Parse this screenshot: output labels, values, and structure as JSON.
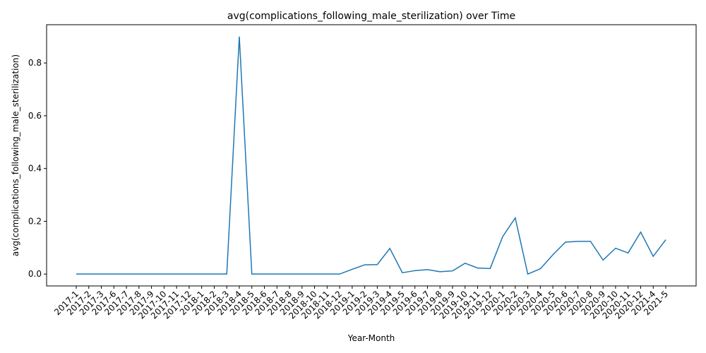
{
  "chart_data": {
    "type": "line",
    "title": "avg(complications_following_male_sterilization) over Time",
    "xlabel": "Year-Month",
    "ylabel": "avg(complications_following_male_sterilization)",
    "ylim": [
      -0.045,
      0.945
    ],
    "yticks": [
      0.0,
      0.2,
      0.4,
      0.6,
      0.8
    ],
    "ytick_labels": [
      "0.0",
      "0.2",
      "0.4",
      "0.6",
      "0.8"
    ],
    "grid": false,
    "color": "#1f77b4",
    "categories": [
      "2017-1",
      "2017-2",
      "2017-3",
      "2017-6",
      "2017-7",
      "2017-8",
      "2017-9",
      "2017-10",
      "2017-11",
      "2017-12",
      "2018-1",
      "2018-2",
      "2018-3",
      "2018-4",
      "2018-5",
      "2018-6",
      "2018-7",
      "2018-8",
      "2018-9",
      "2018-10",
      "2018-11",
      "2018-12",
      "2019-1",
      "2019-2",
      "2019-3",
      "2019-4",
      "2019-5",
      "2019-6",
      "2019-7",
      "2019-8",
      "2019-9",
      "2019-10",
      "2019-11",
      "2019-12",
      "2020-1",
      "2020-2",
      "2020-3",
      "2020-4",
      "2020-5",
      "2020-6",
      "2020-7",
      "2020-8",
      "2020-9",
      "2020-10",
      "2020-11",
      "2020-12",
      "2021-4",
      "2021-5"
    ],
    "values": [
      0.0,
      0.0,
      0.0,
      0.0,
      0.0,
      0.0,
      0.0,
      0.0,
      0.0,
      0.0,
      0.0,
      0.0,
      0.0,
      0.9,
      0.0,
      0.0,
      0.0,
      0.0,
      0.0,
      0.0,
      0.0,
      0.0,
      0.018,
      0.035,
      0.036,
      0.097,
      0.005,
      0.013,
      0.017,
      0.009,
      0.012,
      0.041,
      0.023,
      0.021,
      0.142,
      0.213,
      0.0,
      0.02,
      0.073,
      0.121,
      0.124,
      0.124,
      0.053,
      0.098,
      0.08,
      0.159,
      0.067,
      0.13
    ]
  }
}
